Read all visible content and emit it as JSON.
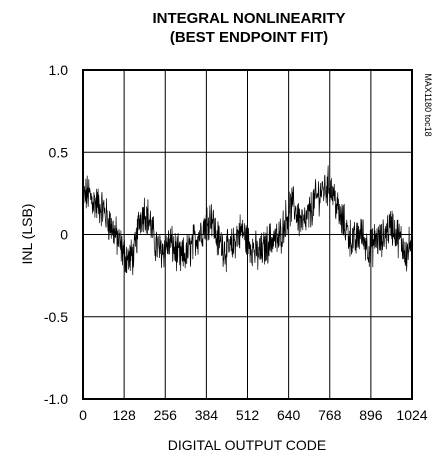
{
  "chart_data": {
    "type": "line",
    "title_lines": [
      "INTEGRAL NONLINEARITY",
      "(BEST ENDPOINT FIT)"
    ],
    "xlabel": "DIGITAL OUTPUT CODE",
    "ylabel": "INL (LSB)",
    "xlim": [
      0,
      1024
    ],
    "ylim": [
      -1.0,
      1.0
    ],
    "x_ticks": [
      0,
      128,
      256,
      384,
      512,
      640,
      768,
      896,
      1024
    ],
    "x_tick_labels": [
      "0",
      "128",
      "256",
      "384",
      "512",
      "640",
      "768",
      "896",
      "1024"
    ],
    "y_ticks": [
      1.0,
      0.5,
      0,
      -0.5,
      -1.0
    ],
    "y_tick_labels": [
      "1.0",
      "0.5",
      "0",
      "-0.5",
      "-1.0"
    ],
    "grid": true,
    "line_color": "#000000",
    "watermark": "MAX1180 toc18",
    "series": [
      {
        "x": [
          0,
          16,
          32,
          48,
          64,
          80,
          96,
          112,
          128,
          144,
          160,
          176,
          192,
          208,
          224,
          240,
          256,
          272,
          288,
          304,
          320,
          336,
          352,
          368,
          384,
          400,
          416,
          432,
          448,
          464,
          480,
          496,
          512,
          528,
          544,
          560,
          576,
          592,
          608,
          624,
          640,
          656,
          672,
          688,
          704,
          720,
          736,
          752,
          768,
          784,
          800,
          816,
          832,
          848,
          864,
          880,
          896,
          912,
          928,
          944,
          960,
          976,
          992,
          1008,
          1024
        ],
        "y": [
          0.22,
          0.25,
          0.2,
          0.18,
          0.15,
          0.08,
          0.02,
          -0.05,
          -0.12,
          -0.15,
          -0.12,
          0.1,
          0.15,
          0.08,
          -0.05,
          -0.1,
          -0.08,
          -0.05,
          -0.1,
          -0.15,
          -0.12,
          -0.08,
          -0.02,
          0.02,
          0.08,
          0.12,
          -0.02,
          -0.06,
          -0.1,
          -0.08,
          0.0,
          0.02,
          -0.04,
          -0.08,
          -0.12,
          -0.1,
          -0.05,
          -0.02,
          -0.04,
          0.05,
          0.15,
          0.18,
          0.1,
          0.06,
          0.12,
          0.2,
          0.25,
          0.28,
          0.3,
          0.22,
          0.1,
          0.05,
          -0.02,
          -0.05,
          0.02,
          -0.05,
          -0.1,
          -0.02,
          -0.05,
          0.02,
          0.06,
          0.0,
          -0.05,
          -0.12,
          -0.02
        ]
      }
    ]
  }
}
